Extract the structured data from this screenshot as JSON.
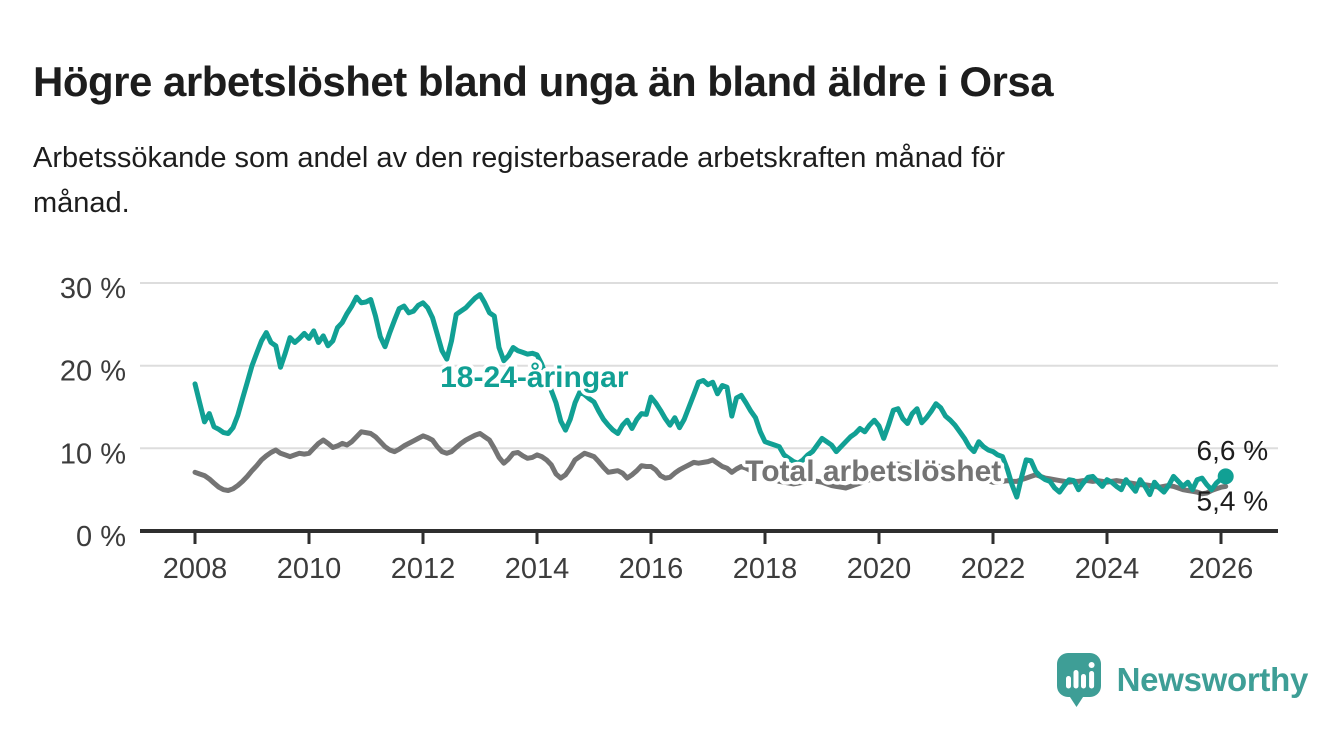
{
  "header": {
    "title": "Högre arbetslöshet bland unga än bland äldre i Orsa",
    "subtitle_line1": "Arbetssökande som andel av den registerbaserade arbetskraften månad för",
    "subtitle_line2": "månad."
  },
  "chart_data": {
    "type": "line",
    "title": "Högre arbetslöshet bland unga än bland äldre i Orsa",
    "subtitle": "Arbetssökande som andel av den registerbaserade arbetskraften månad för månad.",
    "unit": "percent",
    "frequency": "monthly",
    "x_start": {
      "year": 2008,
      "month": 1
    },
    "x_end": {
      "year": 2026,
      "month": 2
    },
    "x_axis": {
      "ticks": [
        2008,
        2010,
        2012,
        2014,
        2016,
        2018,
        2020,
        2022,
        2024,
        2026
      ],
      "range": [
        2007.0,
        2027.0
      ]
    },
    "y_axis": {
      "ticks": [
        0,
        10,
        20,
        30
      ],
      "tick_labels": [
        "0 %",
        "10 %",
        "20 %",
        "30 %"
      ],
      "range": [
        0,
        32.5
      ],
      "grid": true
    },
    "legend_position": "inline-labels",
    "series": [
      {
        "key": "youth",
        "name": "18-24-åringar",
        "color": "#11a094",
        "end_value_label": "6,6 %",
        "values": [
          17.8,
          15.5,
          13.2,
          14.2,
          12.6,
          12.3,
          11.9,
          11.8,
          12.5,
          14.0,
          16.0,
          18.0,
          20.0,
          21.5,
          23.0,
          24.0,
          22.8,
          22.4,
          19.8,
          21.5,
          23.4,
          22.8,
          23.3,
          23.9,
          23.3,
          24.2,
          22.8,
          23.6,
          22.4,
          23.0,
          24.6,
          25.2,
          26.3,
          27.2,
          28.3,
          27.6,
          27.7,
          28.0,
          26.0,
          23.5,
          22.3,
          24.0,
          25.5,
          26.9,
          27.2,
          26.4,
          26.6,
          27.3,
          27.6,
          27.0,
          25.8,
          23.8,
          21.8,
          20.8,
          23.0,
          26.2,
          26.6,
          27.0,
          27.6,
          28.2,
          28.6,
          27.6,
          26.4,
          26.0,
          22.2,
          20.6,
          21.2,
          22.2,
          21.8,
          21.6,
          21.4,
          21.5,
          21.3,
          20.2,
          18.5,
          17.0,
          15.5,
          13.3,
          12.2,
          13.5,
          15.5,
          16.8,
          16.5,
          16.0,
          15.6,
          14.5,
          13.5,
          12.8,
          12.2,
          11.8,
          12.8,
          13.4,
          12.4,
          13.5,
          14.2,
          14.1,
          16.2,
          15.5,
          14.6,
          13.6,
          12.8,
          13.7,
          12.5,
          13.5,
          15.0,
          16.5,
          18.0,
          18.2,
          17.7,
          18.0,
          16.6,
          17.6,
          17.4,
          13.9,
          16.1,
          16.4,
          15.5,
          14.5,
          13.7,
          12.0,
          10.8,
          10.6,
          10.4,
          10.2,
          9.2,
          8.8,
          8.4,
          8.2,
          8.6,
          9.2,
          9.6,
          10.4,
          11.2,
          10.8,
          10.4,
          9.6,
          10.2,
          10.8,
          11.4,
          11.8,
          12.4,
          12.0,
          12.8,
          13.4,
          12.7,
          11.2,
          12.8,
          14.6,
          14.8,
          13.6,
          13.0,
          14.2,
          14.8,
          13.1,
          13.7,
          14.5,
          15.4,
          14.9,
          13.9,
          13.4,
          12.8,
          12.0,
          11.2,
          10.2,
          9.6,
          10.8,
          10.2,
          9.8,
          9.6,
          9.2,
          9.0,
          7.5,
          5.6,
          4.1,
          6.5,
          8.6,
          8.5,
          7.2,
          6.6,
          6.2,
          6.0,
          5.2,
          4.7,
          5.5,
          6.2,
          6.1,
          5.0,
          5.8,
          6.5,
          6.6,
          6.0,
          5.4,
          6.2,
          5.9,
          5.4,
          5.0,
          6.2,
          5.5,
          4.8,
          6.2,
          5.4,
          4.4,
          5.9,
          5.2,
          4.7,
          5.5,
          6.6,
          6.0,
          5.4,
          5.9,
          5.0,
          6.2,
          6.4,
          5.6,
          5.0,
          5.8,
          6.3,
          6.6
        ]
      },
      {
        "key": "total",
        "name": "Total arbetslöshet",
        "color": "#747474",
        "end_value_label": "5,4 %",
        "values": [
          7.1,
          6.9,
          6.7,
          6.3,
          5.8,
          5.3,
          5.0,
          4.9,
          5.1,
          5.5,
          6.0,
          6.6,
          7.3,
          7.9,
          8.6,
          9.1,
          9.5,
          9.8,
          9.4,
          9.2,
          9.0,
          9.2,
          9.4,
          9.3,
          9.4,
          10.0,
          10.6,
          11.0,
          10.6,
          10.1,
          10.3,
          10.6,
          10.4,
          10.8,
          11.4,
          12.0,
          11.9,
          11.8,
          11.4,
          10.8,
          10.2,
          9.8,
          9.6,
          9.9,
          10.3,
          10.6,
          10.9,
          11.2,
          11.5,
          11.3,
          11.0,
          10.2,
          9.6,
          9.4,
          9.6,
          10.1,
          10.6,
          11.0,
          11.3,
          11.6,
          11.8,
          11.4,
          11.0,
          10.0,
          8.9,
          8.2,
          8.7,
          9.4,
          9.5,
          9.1,
          8.8,
          8.9,
          9.2,
          9.0,
          8.6,
          8.0,
          6.9,
          6.4,
          6.8,
          7.6,
          8.6,
          9.0,
          9.4,
          9.2,
          9.0,
          8.4,
          7.7,
          7.1,
          7.2,
          7.3,
          7.0,
          6.4,
          6.8,
          7.3,
          7.9,
          7.8,
          7.8,
          7.4,
          6.7,
          6.4,
          6.5,
          7.0,
          7.4,
          7.7,
          8.0,
          8.3,
          8.2,
          8.3,
          8.4,
          8.6,
          8.2,
          7.8,
          7.6,
          7.1,
          7.5,
          7.8,
          7.6,
          7.3,
          7.0,
          6.8,
          6.6,
          6.4,
          6.2,
          6.0,
          5.9,
          5.8,
          5.7,
          5.8,
          5.9,
          6.0,
          6.1,
          6.0,
          5.9,
          5.7,
          5.5,
          5.4,
          5.3,
          5.2,
          5.4,
          5.6,
          5.8,
          6.0,
          6.2,
          6.4,
          6.6,
          6.8,
          7.2,
          7.8,
          8.1,
          8.0,
          7.9,
          8.0,
          7.9,
          7.8,
          7.7,
          7.8,
          7.9,
          7.8,
          7.6,
          7.4,
          7.2,
          7.0,
          6.8,
          6.6,
          6.4,
          6.3,
          6.2,
          6.1,
          5.9,
          5.9,
          6.0,
          6.1,
          6.0,
          6.0,
          6.2,
          6.4,
          6.6,
          6.8,
          6.6,
          6.4,
          6.3,
          6.2,
          6.1,
          6.0,
          5.9,
          6.0,
          6.0,
          6.1,
          6.1,
          6.0,
          6.1,
          6.0,
          5.9,
          6.0,
          6.1,
          6.0,
          5.9,
          5.8,
          5.7,
          5.6,
          5.6,
          5.5,
          5.4,
          5.3,
          5.4,
          5.5,
          5.4,
          5.2,
          5.0,
          4.9,
          4.8,
          4.7,
          4.5,
          4.6,
          4.9,
          5.1,
          5.3,
          5.4
        ]
      }
    ],
    "annotations": [
      {
        "key": "youth-series-label",
        "text": "18-24-åringar",
        "x": 2012.3,
        "y": 17.4,
        "color": "#11a094",
        "size": 30,
        "weight": 700,
        "halo": true
      },
      {
        "key": "total-series-label",
        "text": "Total arbetslöshet",
        "x": 2017.65,
        "y": 6.05,
        "color": "#747474",
        "size": 30,
        "weight": 700,
        "halo": true
      },
      {
        "key": "youth-end-value",
        "text": "6,6 %",
        "x": 2025.57,
        "y": 8.6,
        "color": "#1d1d1d",
        "size": 28,
        "weight": 400,
        "halo": false
      },
      {
        "key": "total-end-value",
        "text": "5,4 %",
        "x": 2025.57,
        "y": 2.5,
        "color": "#1d1d1d",
        "size": 28,
        "weight": 400,
        "halo": false
      }
    ],
    "end_marker": {
      "series": 0,
      "radius": 8
    }
  },
  "footer": {
    "brand": "Newsworthy"
  },
  "colors": {
    "accent": "#11a094",
    "neutral": "#747474",
    "grid": "#dddddd",
    "axis": "#2e2e2e",
    "axis_text": "#3c3c3c",
    "title_text": "#1d1d1d",
    "logo": "#3e9e96",
    "background": "#ffffff"
  }
}
